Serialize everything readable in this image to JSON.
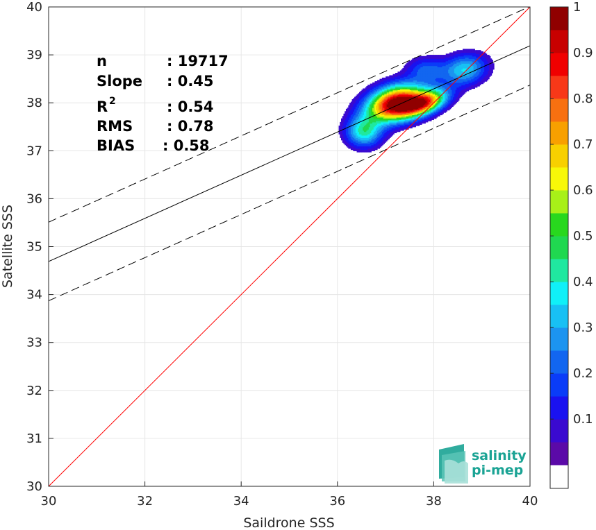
{
  "chart_data": {
    "type": "scatter",
    "subtype": "density-contour",
    "xlabel": "Saildrone SSS",
    "ylabel": "Satellite SSS",
    "xlim": [
      30,
      40
    ],
    "ylim": [
      30,
      40
    ],
    "x_ticks": [
      30,
      32,
      34,
      36,
      38,
      40
    ],
    "y_ticks": [
      30,
      31,
      32,
      33,
      34,
      35,
      36,
      37,
      38,
      39,
      40
    ],
    "grid": true,
    "stats": [
      {
        "label": "n",
        "value": ": 19717"
      },
      {
        "label": "Slope",
        "value": ": 0.45"
      },
      {
        "label": "R",
        "sup": "2",
        "value": ": 0.54"
      },
      {
        "label": "RMS",
        "value": ": 0.78"
      },
      {
        "label": "BIAS",
        "value": ": 0.58"
      }
    ],
    "lines": {
      "identity": {
        "x": [
          30,
          40
        ],
        "y": [
          30,
          40
        ],
        "color": "#ff0000"
      },
      "regression": {
        "x": [
          30,
          40
        ],
        "y": [
          34.69,
          39.19
        ],
        "color": "#000000"
      },
      "upper_band": {
        "x": [
          30,
          40
        ],
        "y": [
          35.51,
          40.01
        ],
        "color": "#000000",
        "style": "dashed"
      },
      "lower_band": {
        "x": [
          30,
          40
        ],
        "y": [
          33.87,
          38.37
        ],
        "color": "#000000",
        "style": "dashed"
      }
    },
    "density_peaks": [
      {
        "x": 37.2,
        "y": 38.0,
        "peak": 1.0
      },
      {
        "x": 37.8,
        "y": 38.0,
        "peak": 0.7
      },
      {
        "x": 38.65,
        "y": 38.7,
        "peak": 0.35
      },
      {
        "x": 36.55,
        "y": 37.4,
        "peak": 0.4
      },
      {
        "x": 37.85,
        "y": 38.7,
        "peak": 0.2
      }
    ],
    "colorbar": {
      "range": [
        0,
        1
      ],
      "tick_labels": [
        "0.1",
        "0.2",
        "0.3",
        "0.4",
        "0.5",
        "0.6",
        "0.7",
        "0.8",
        "0.9",
        "1"
      ],
      "levels": 20,
      "colors": [
        "#ffffff",
        "#5b0aa8",
        "#3a0ad0",
        "#1a12f0",
        "#0a3cf8",
        "#1266f0",
        "#1c94f0",
        "#18c0f4",
        "#10f0f8",
        "#20e8a0",
        "#20d850",
        "#28d81e",
        "#a8f018",
        "#f8f808",
        "#f8d000",
        "#f8a000",
        "#f87010",
        "#f83818",
        "#f00000",
        "#c80000",
        "#900000"
      ]
    }
  },
  "logo": {
    "line1": "salinity",
    "line2": "pi-mep"
  }
}
